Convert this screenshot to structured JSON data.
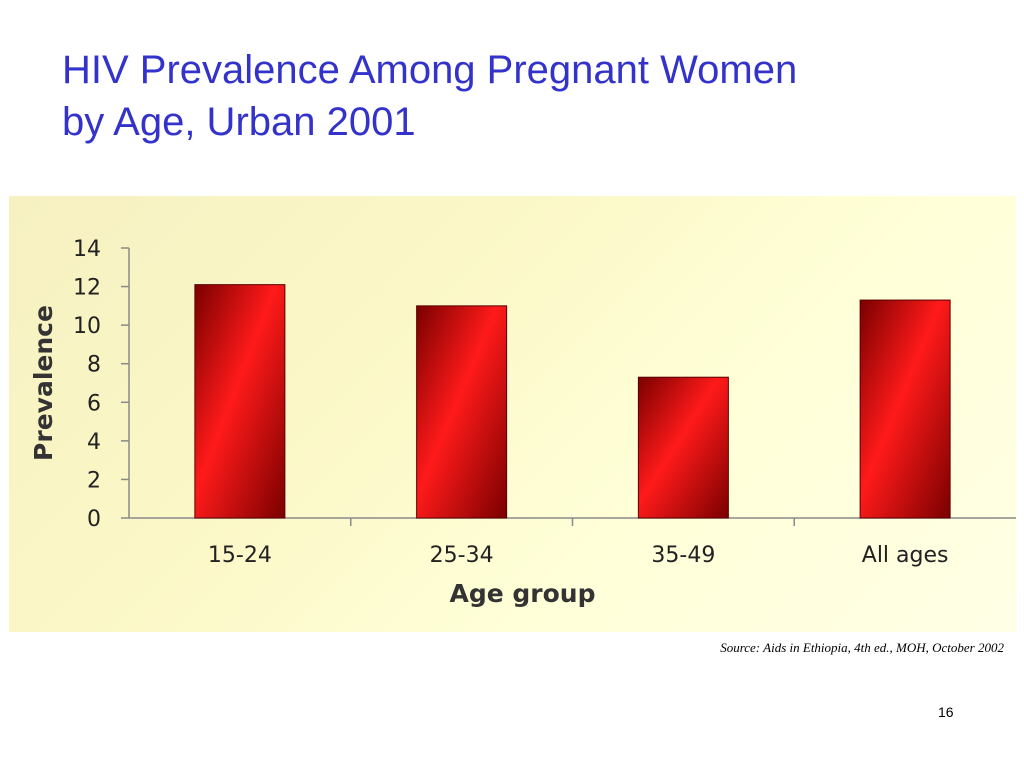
{
  "slide": {
    "title_line1": "HIV Prevalence Among Pregnant Women",
    "title_line2": "by Age, Urban 2001",
    "source": "Source:  Aids in Ethiopia, 4th ed., MOH, October 2002",
    "page_number": "16"
  },
  "chart_data": {
    "type": "bar",
    "categories": [
      "15-24",
      "25-34",
      "35-49",
      "All ages"
    ],
    "values": [
      12.1,
      11.0,
      7.3,
      11.3
    ],
    "xlabel": "Age group",
    "ylabel": "Prevalence",
    "ylim": [
      0,
      14
    ],
    "yticks": [
      0,
      2,
      4,
      6,
      8,
      10,
      12,
      14
    ],
    "grid": false,
    "legend": "none"
  },
  "colors": {
    "title": "#3333cc",
    "bar_light": "#ff1a1a",
    "bar_dark": "#7a0000",
    "axis": "#8a8a8a",
    "tick_text": "#222222"
  }
}
